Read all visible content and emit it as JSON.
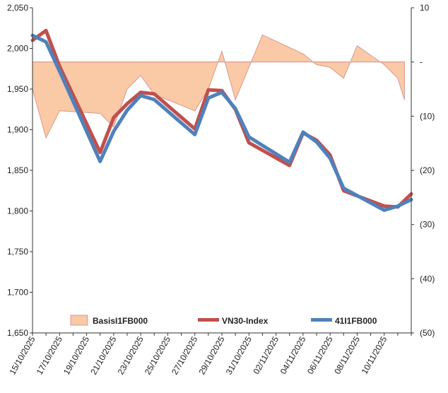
{
  "chart_data": {
    "type": "line",
    "title": "",
    "x_labels": [
      "15/10/2025",
      "17/10/2025",
      "19/10/2025",
      "21/10/2025",
      "23/10/2025",
      "25/10/2025",
      "27/10/2025",
      "29/10/2025",
      "31/10/2025",
      "02/11/2025",
      "04/11/2025",
      "06/11/2025",
      "08/11/2025",
      "10/11/2025"
    ],
    "left_axis": {
      "min": 1650,
      "max": 2050,
      "ticks": [
        "1,650",
        "1,700",
        "1,750",
        "1,800",
        "1,850",
        "1,900",
        "1,950",
        "2,000",
        "2,050"
      ]
    },
    "right_axis": {
      "min": -50,
      "max": 10,
      "ticks": [
        "(50)",
        "(40)",
        "(30)",
        "(20)",
        "(10)",
        "-",
        "10"
      ]
    },
    "series": [
      {
        "name": "BasisI1FB000",
        "kind": "area",
        "axis": "right",
        "color": "#fac9a6",
        "edge": "#d99a94",
        "points": [
          [
            0,
            -5
          ],
          [
            1,
            -14
          ],
          [
            2,
            -9
          ],
          [
            5,
            -9.5
          ],
          [
            6,
            -12
          ],
          [
            7,
            -5
          ],
          [
            8,
            -2.5
          ],
          [
            9,
            -6
          ],
          [
            12,
            -9
          ],
          [
            13,
            -5
          ],
          [
            14,
            2
          ],
          [
            15,
            -7
          ],
          [
            17,
            5
          ],
          [
            20,
            1.5
          ],
          [
            21,
            -0.5
          ],
          [
            22,
            -1
          ],
          [
            23,
            -3
          ],
          [
            24,
            3
          ],
          [
            26,
            -0.5
          ],
          [
            27,
            -3
          ],
          [
            27.5,
            -7
          ]
        ]
      },
      {
        "name": "VN30-Index",
        "kind": "line",
        "axis": "left",
        "color": "#c0504d",
        "points": [
          [
            0,
            2010
          ],
          [
            1,
            2022
          ],
          [
            2,
            1978
          ],
          [
            5,
            1872
          ],
          [
            6,
            1915
          ],
          [
            7,
            1932
          ],
          [
            8,
            1946
          ],
          [
            9,
            1944
          ],
          [
            12,
            1901
          ],
          [
            13,
            1949
          ],
          [
            14,
            1948
          ],
          [
            15,
            1925
          ],
          [
            16,
            1884
          ],
          [
            19,
            1856
          ],
          [
            20,
            1896
          ],
          [
            21,
            1887
          ],
          [
            22,
            1869
          ],
          [
            23,
            1825
          ],
          [
            26,
            1806
          ],
          [
            27,
            1805
          ],
          [
            28,
            1821
          ]
        ]
      },
      {
        "name": "41I1FB000",
        "kind": "line",
        "axis": "left",
        "color": "#4f81bd",
        "points": [
          [
            0,
            2016
          ],
          [
            1,
            2008
          ],
          [
            2,
            1972
          ],
          [
            5,
            1861
          ],
          [
            6,
            1898
          ],
          [
            7,
            1924
          ],
          [
            8,
            1942
          ],
          [
            9,
            1937
          ],
          [
            12,
            1894
          ],
          [
            13,
            1939
          ],
          [
            14,
            1946
          ],
          [
            15,
            1926
          ],
          [
            16,
            1891
          ],
          [
            19,
            1860
          ],
          [
            20,
            1897
          ],
          [
            21,
            1885
          ],
          [
            22,
            1865
          ],
          [
            23,
            1828
          ],
          [
            26,
            1801
          ],
          [
            27,
            1806
          ],
          [
            28,
            1814
          ]
        ]
      }
    ],
    "legend": [
      "BasisI1FB000",
      "VN30-Index",
      "41I1FB000"
    ],
    "legend_position": "bottom-inside",
    "grid": false
  }
}
